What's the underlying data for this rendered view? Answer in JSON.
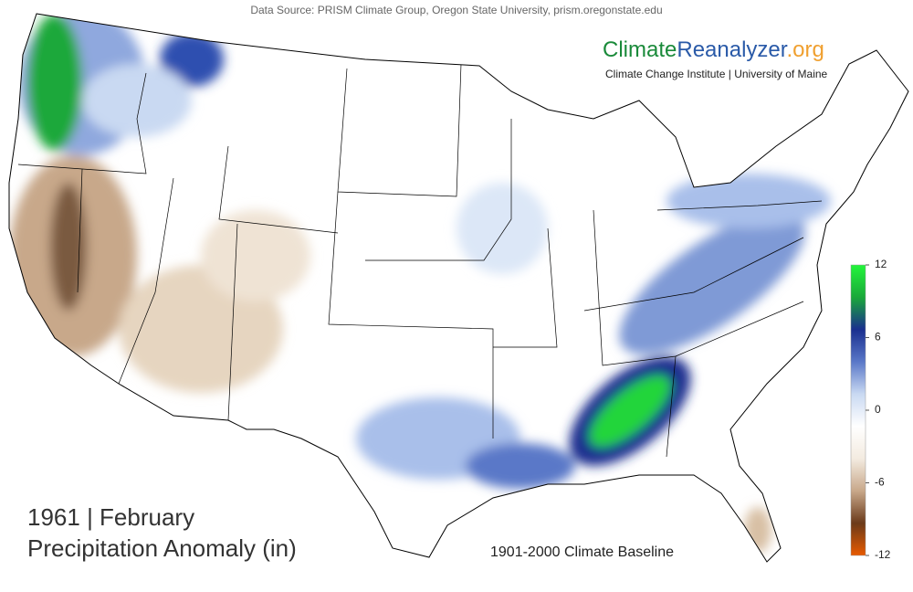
{
  "header": {
    "source": "Data Source: PRISM Climate Group, Oregon State University, prism.oregonstate.edu",
    "logo": {
      "part1": "Climate",
      "part2": "Reanalyzer",
      "part3": ".org"
    },
    "institute": "Climate Change Institute | University of Maine"
  },
  "title": {
    "line1": "1961 | February",
    "line2": "Precipitation Anomaly (in)"
  },
  "baseline": "1901-2000 Climate Baseline",
  "colorbar": {
    "lim": [
      -12,
      12
    ],
    "ticks": [
      12,
      6,
      0,
      -6,
      -12
    ],
    "colors": [
      "#e85a00",
      "#6b3a1a",
      "#c8a88a",
      "#f3ebe0",
      "#ffffff",
      "#c9d9f2",
      "#5a78c8",
      "#1a2f8f",
      "#1aa83a",
      "#22f53a"
    ]
  }
}
